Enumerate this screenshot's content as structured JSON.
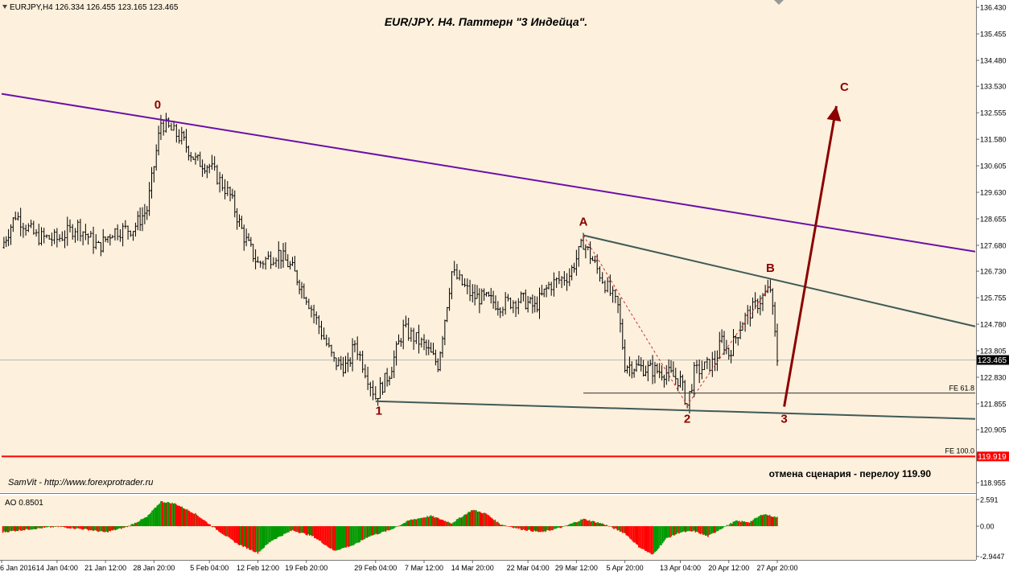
{
  "header": {
    "symbol_info": "EURJPY,H4  126.334 126.455 123.165 123.465",
    "title": "EUR/JPY. H4. Паттерн \"3 Индейца\"."
  },
  "watermark": "SamVit - http://www.forexprotrader.ru",
  "scenario_cancel_note": "отмена сценария - перелоу 119.90",
  "colors": {
    "background": "#fdf0dc",
    "bull_bar": "#009900",
    "bear_bar": "#ff0000",
    "price_bar": "#000000",
    "main_channel_line": "#6a10a8",
    "secondary_channel_line": "#3f5a58",
    "wave_label": "#8b0000",
    "projection_arrow": "#8b0000",
    "stop_line": "#ff0000"
  },
  "chart_data": [
    {
      "type": "ohlc",
      "symbol": "EURJPY",
      "timeframe": "H4",
      "ohlc_header": {
        "open": 126.334,
        "high": 126.455,
        "low": 123.165,
        "close": 123.465
      },
      "ylim": [
        118.6,
        136.7
      ],
      "price_ticks": [
        "136.430",
        "135.455",
        "134.480",
        "133.530",
        "132.555",
        "131.580",
        "130.605",
        "129.630",
        "128.655",
        "127.680",
        "126.730",
        "125.755",
        "124.780",
        "123.805",
        "122.830",
        "121.855",
        "120.905",
        "119.930",
        "118.955"
      ],
      "current_price_label": "123.465",
      "stop_price_label": "119.919",
      "x_labels": [
        "6 Jan 2016",
        "14 Jan 04:00",
        "21 Jan 12:00",
        "28 Jan 20:00",
        "5 Feb 04:00",
        "12 Feb 12:00",
        "19 Feb 20:00",
        "29 Feb 04:00",
        "7 Mar 12:00",
        "14 Mar 20:00",
        "22 Mar 04:00",
        "29 Mar 12:00",
        "5 Apr 20:00",
        "13 Apr 04:00",
        "20 Apr 12:00",
        "27 Apr 20:00"
      ],
      "price_path": [
        {
          "x": "6 Jan 2016",
          "y": 127.6
        },
        {
          "x": "8 Jan",
          "y": 128.8
        },
        {
          "x": "11 Jan",
          "y": 128.0
        },
        {
          "x": "14 Jan",
          "y": 127.9
        },
        {
          "x": "17 Jan",
          "y": 128.4
        },
        {
          "x": "20 Jan",
          "y": 127.6
        },
        {
          "x": "22 Jan",
          "y": 128.2
        },
        {
          "x": "25 Jan",
          "y": 128.3
        },
        {
          "x": "27 Jan",
          "y": 129.0
        },
        {
          "x": "29 Jan",
          "y": 132.2
        },
        {
          "x": "1 Feb",
          "y": 131.6
        },
        {
          "x": "3 Feb",
          "y": 130.8
        },
        {
          "x": "5 Feb",
          "y": 130.6
        },
        {
          "x": "8 Feb",
          "y": 129.5
        },
        {
          "x": "10 Feb",
          "y": 128.0
        },
        {
          "x": "12 Feb",
          "y": 127.0
        },
        {
          "x": "15 Feb",
          "y": 127.4
        },
        {
          "x": "17 Feb",
          "y": 126.8
        },
        {
          "x": "19 Feb",
          "y": 125.8
        },
        {
          "x": "23 Feb",
          "y": 123.4
        },
        {
          "x": "25 Feb",
          "y": 123.2
        },
        {
          "x": "26 Feb",
          "y": 124.1
        },
        {
          "x": "29 Feb",
          "y": 122.1
        },
        {
          "x": "2 Mar",
          "y": 123.0
        },
        {
          "x": "4 Mar",
          "y": 124.6
        },
        {
          "x": "7 Mar",
          "y": 124.0
        },
        {
          "x": "9 Mar",
          "y": 123.3
        },
        {
          "x": "11 Mar",
          "y": 126.7
        },
        {
          "x": "14 Mar",
          "y": 125.8
        },
        {
          "x": "16 Mar",
          "y": 125.7
        },
        {
          "x": "18 Mar",
          "y": 125.5
        },
        {
          "x": "21 Mar",
          "y": 125.7
        },
        {
          "x": "23 Mar",
          "y": 125.4
        },
        {
          "x": "25 Mar",
          "y": 126.2
        },
        {
          "x": "28 Mar",
          "y": 126.6
        },
        {
          "x": "30 Mar",
          "y": 127.8
        },
        {
          "x": "1 Apr",
          "y": 126.8
        },
        {
          "x": "4 Apr",
          "y": 125.4
        },
        {
          "x": "5 Apr",
          "y": 123.3
        },
        {
          "x": "7 Apr",
          "y": 123.2
        },
        {
          "x": "9 Apr",
          "y": 123.1
        },
        {
          "x": "11 Apr",
          "y": 123.0
        },
        {
          "x": "13 Apr",
          "y": 122.7
        },
        {
          "x": "14 Apr",
          "y": 121.8
        },
        {
          "x": "15 Apr",
          "y": 123.0
        },
        {
          "x": "18 Apr",
          "y": 123.4
        },
        {
          "x": "19 Apr",
          "y": 124.2
        },
        {
          "x": "20 Apr",
          "y": 123.7
        },
        {
          "x": "22 Apr",
          "y": 124.9
        },
        {
          "x": "26 Apr",
          "y": 126.1
        },
        {
          "x": "27 Apr",
          "y": 123.5
        }
      ],
      "lines": [
        {
          "name": "main-channel",
          "from": {
            "x": "6 Jan 2016",
            "y": 133.25
          },
          "to": {
            "x": "end",
            "y": 127.45
          }
        },
        {
          "name": "upper-wedge",
          "from": {
            "x": "30 Mar",
            "y": 128.05
          },
          "to": {
            "x": "end",
            "y": 124.7
          }
        },
        {
          "name": "lower-wedge",
          "from": {
            "x": "29 Feb",
            "y": 121.95
          },
          "to": {
            "x": "end",
            "y": 121.3
          }
        },
        {
          "name": "fe-61-8",
          "from": {
            "x": "30 Mar",
            "y": 122.25
          },
          "to": {
            "x": "end",
            "y": 122.25
          }
        },
        {
          "name": "fe-100",
          "from": {
            "x": "6 Jan 2016",
            "y": 119.919
          },
          "to": {
            "x": "end",
            "y": 119.919
          }
        }
      ],
      "level_labels": [
        {
          "text": "FE 61.8",
          "y": 122.25
        },
        {
          "text": "FE 100.0",
          "y": 119.919
        }
      ],
      "wave_labels": [
        {
          "text": "0",
          "x": "29 Jan",
          "y": 132.85
        },
        {
          "text": "1",
          "x": "29 Feb",
          "y": 121.6
        },
        {
          "text": "A",
          "x": "30 Mar",
          "y": 128.55
        },
        {
          "text": "2",
          "x": "14 Apr",
          "y": 121.3
        },
        {
          "text": "B",
          "x": "26 Apr",
          "y": 126.85
        },
        {
          "text": "3",
          "x": "28 Apr",
          "y": 121.3
        },
        {
          "text": "C",
          "x": "May projection",
          "y": 133.5
        }
      ],
      "projection_arrow": {
        "from": {
          "x": "28 Apr",
          "y": 121.75
        },
        "to": {
          "x": "May projection",
          "y": 132.8
        }
      }
    },
    {
      "type": "bar",
      "indicator": "AO",
      "label": "AO 0.8501",
      "ylim": [
        -3.2,
        2.9
      ],
      "ticks": [
        "2.591",
        "0.00",
        "-2.9447"
      ],
      "current_value": 0.8501,
      "histogram": [
        {
          "t": "6 Jan 2016",
          "v": -0.6
        },
        {
          "t": "10 Jan",
          "v": -0.3
        },
        {
          "t": "14 Jan",
          "v": -0.05
        },
        {
          "t": "18 Jan",
          "v": -0.3
        },
        {
          "t": "21 Jan",
          "v": -0.6
        },
        {
          "t": "24 Jan",
          "v": -0.1
        },
        {
          "t": "27 Jan",
          "v": 0.9
        },
        {
          "t": "29 Jan",
          "v": 2.4
        },
        {
          "t": "31 Jan",
          "v": 2.2
        },
        {
          "t": "3 Feb",
          "v": 1.2
        },
        {
          "t": "6 Feb",
          "v": -0.3
        },
        {
          "t": "9 Feb",
          "v": -1.7
        },
        {
          "t": "12 Feb",
          "v": -2.6
        },
        {
          "t": "14 Feb",
          "v": -1.4
        },
        {
          "t": "17 Feb",
          "v": -0.4
        },
        {
          "t": "20 Feb",
          "v": -1.0
        },
        {
          "t": "23 Feb",
          "v": -2.4
        },
        {
          "t": "26 Feb",
          "v": -1.8
        },
        {
          "t": "28 Feb",
          "v": -1.0
        },
        {
          "t": "2 Mar",
          "v": -0.4
        },
        {
          "t": "5 Mar",
          "v": 0.6
        },
        {
          "t": "8 Mar",
          "v": 1.0
        },
        {
          "t": "11 Mar",
          "v": 0.3
        },
        {
          "t": "14 Mar",
          "v": 1.6
        },
        {
          "t": "16 Mar",
          "v": 1.2
        },
        {
          "t": "18 Mar",
          "v": 0.2
        },
        {
          "t": "21 Mar",
          "v": -0.3
        },
        {
          "t": "24 Mar",
          "v": -0.6
        },
        {
          "t": "27 Mar",
          "v": -0.1
        },
        {
          "t": "30 Mar",
          "v": 0.7
        },
        {
          "t": "2 Apr",
          "v": 0.2
        },
        {
          "t": "5 Apr",
          "v": -0.7
        },
        {
          "t": "7 Apr",
          "v": -2.0
        },
        {
          "t": "9 Apr",
          "v": -2.8
        },
        {
          "t": "11 Apr",
          "v": -1.2
        },
        {
          "t": "13 Apr",
          "v": -0.6
        },
        {
          "t": "15 Apr",
          "v": -0.5
        },
        {
          "t": "17 Apr",
          "v": -1.0
        },
        {
          "t": "19 Apr",
          "v": -0.2
        },
        {
          "t": "21 Apr",
          "v": 0.5
        },
        {
          "t": "23 Apr",
          "v": 0.4
        },
        {
          "t": "25 Apr",
          "v": 1.2
        },
        {
          "t": "27 Apr",
          "v": 0.85
        }
      ]
    }
  ]
}
